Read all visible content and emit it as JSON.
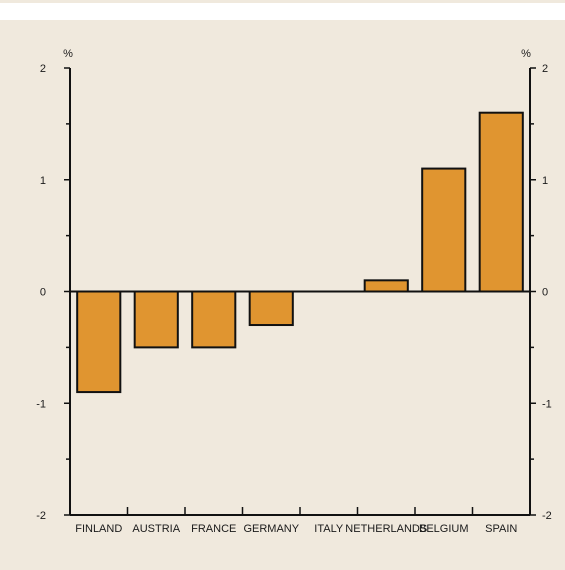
{
  "chart_data": {
    "type": "bar",
    "categories": [
      "FINLAND",
      "AUSTRIA",
      "FRANCE",
      "GERMANY",
      "ITALY",
      "NETHERLANDS",
      "BELGIUM",
      "SPAIN"
    ],
    "values": [
      -0.9,
      -0.5,
      -0.5,
      -0.3,
      0.0,
      0.1,
      1.1,
      1.6
    ],
    "title": "",
    "xlabel": "",
    "ylabel_left": "%",
    "ylabel_right": "%",
    "ylim": [
      -2,
      2
    ],
    "yticks": [
      -2,
      -1,
      0,
      1,
      2
    ],
    "ytick_labels": [
      "-2",
      "-1",
      "0",
      "1",
      "2"
    ],
    "grid": false,
    "legend": "none",
    "colors": {
      "bar_fill": "#e09530",
      "bar_stroke": "#111111",
      "axis": "#111111",
      "background": "#f0e9dd"
    }
  }
}
